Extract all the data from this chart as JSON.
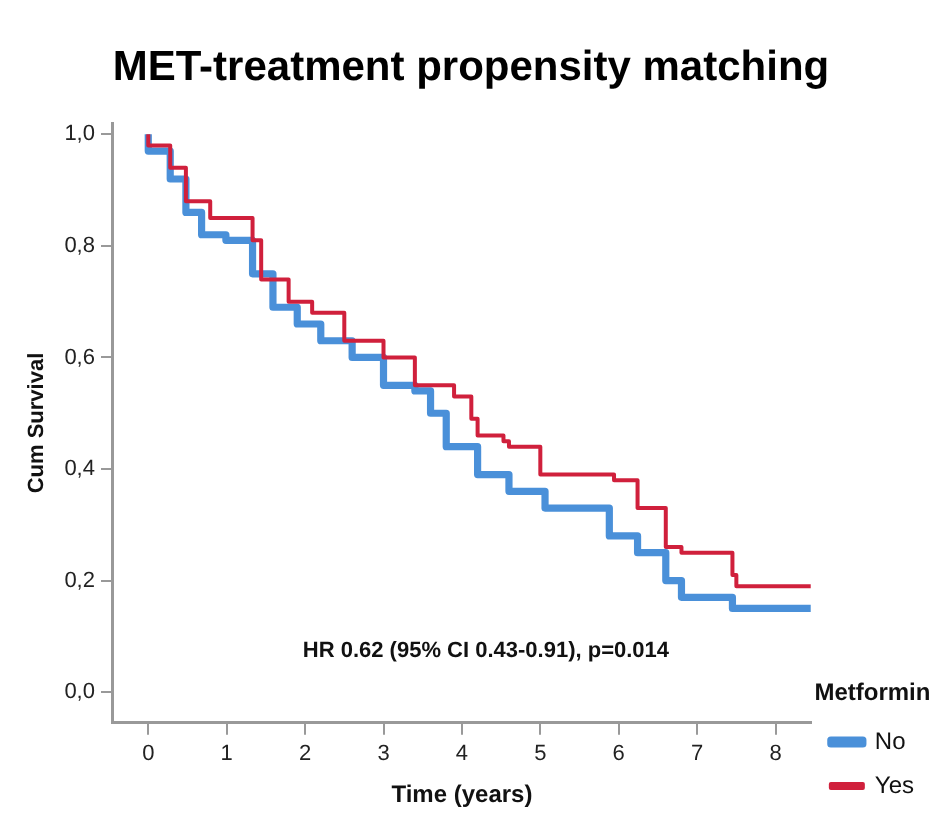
{
  "chart_data": {
    "type": "step",
    "title": "MET-treatment propensity matching",
    "xlabel": "Time (years)",
    "ylabel": "Cum Survival",
    "legend_title": "Metformin",
    "legend": "right",
    "xlim": [
      -0.45,
      8.45
    ],
    "xticks": [
      0,
      1,
      2,
      3,
      4,
      5,
      6,
      7,
      8
    ],
    "ylim": [
      -0.055,
      1.02
    ],
    "yticks": [
      {
        "value": 0,
        "label": "0,0"
      },
      {
        "value": 0.2,
        "label": "0,2"
      },
      {
        "value": 0.4,
        "label": "0,4"
      },
      {
        "value": 0.6,
        "label": "0,6"
      },
      {
        "value": 0.8,
        "label": "0,8"
      },
      {
        "value": 1,
        "label": "1,0"
      }
    ],
    "grid": false,
    "marker": "none",
    "line_style": "solid",
    "annotations": [
      "HR 0.62 (95% CI 0.43-0.91), p=0.014"
    ],
    "series": [
      {
        "name": "No",
        "color": "#4a90d9",
        "x": [
          0,
          0.28,
          0.48,
          0.68,
          0.99,
          1.33,
          1.59,
          1.9,
          2.2,
          2.6,
          3.0,
          3.4,
          3.6,
          3.8,
          4.2,
          4.6,
          5.06,
          5.88,
          6.24,
          6.6,
          6.8,
          7.45,
          7.76,
          8.45
        ],
        "values": [
          1.0,
          0.97,
          0.92,
          0.86,
          0.82,
          0.81,
          0.75,
          0.69,
          0.66,
          0.63,
          0.6,
          0.55,
          0.54,
          0.5,
          0.44,
          0.39,
          0.36,
          0.33,
          0.28,
          0.25,
          0.2,
          0.17,
          0.15,
          0.15
        ]
      },
      {
        "name": "Yes",
        "color": "#d0203c",
        "x": [
          0,
          0.28,
          0.48,
          0.79,
          0.99,
          1.33,
          1.44,
          1.79,
          2.09,
          2.5,
          3.0,
          3.4,
          3.9,
          4.12,
          4.2,
          4.53,
          4.6,
          5.0,
          5.38,
          5.94,
          6.24,
          6.3,
          6.6,
          6.8,
          7.45,
          7.5,
          7.76,
          8.45
        ],
        "values": [
          1.0,
          0.98,
          0.94,
          0.88,
          0.85,
          0.85,
          0.81,
          0.74,
          0.7,
          0.68,
          0.63,
          0.6,
          0.55,
          0.53,
          0.49,
          0.46,
          0.45,
          0.44,
          0.39,
          0.39,
          0.38,
          0.33,
          0.33,
          0.26,
          0.25,
          0.21,
          0.19,
          0.19
        ]
      }
    ]
  }
}
